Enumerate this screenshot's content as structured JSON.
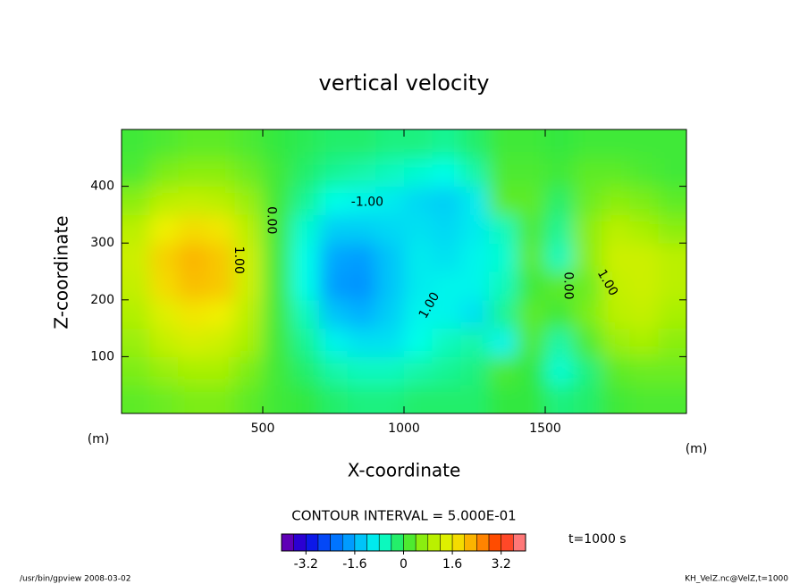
{
  "chart_data": {
    "type": "contour",
    "title": "vertical velocity",
    "x_label": "X-coordinate",
    "y_label": "Z-coordinate",
    "x_unit": "(m)",
    "y_unit": "(m)",
    "xlim": [
      0,
      2000
    ],
    "ylim": [
      0,
      500
    ],
    "xticks": [
      500,
      1000,
      1500
    ],
    "yticks": [
      100,
      200,
      300,
      400
    ],
    "x": [
      50,
      150,
      250,
      350,
      450,
      550,
      650,
      750,
      850,
      950,
      1050,
      1150,
      1250,
      1350,
      1450,
      1550,
      1650,
      1750,
      1850,
      1950
    ],
    "y": [
      25,
      75,
      125,
      175,
      225,
      275,
      325,
      375,
      425,
      475
    ],
    "z": [
      [
        0.3,
        0.4,
        0.5,
        0.5,
        0.3,
        0.1,
        0,
        -0.2,
        -0.3,
        -0.3,
        -0.2,
        -0.2,
        -0.2,
        0,
        0,
        -0.3,
        -0.2,
        0.1,
        0.2,
        0.2
      ],
      [
        0.5,
        0.7,
        0.8,
        0.8,
        0.5,
        0.1,
        -0.2,
        -0.5,
        -0.6,
        -0.6,
        -0.5,
        -0.4,
        -0.3,
        0.2,
        0,
        -0.7,
        -0.3,
        0.3,
        0.4,
        0.4
      ],
      [
        0.7,
        1.1,
        1.3,
        1.2,
        0.8,
        0.1,
        -0.4,
        -0.9,
        -1.1,
        -1.1,
        -0.8,
        -0.6,
        -0.5,
        -0.9,
        0.2,
        -0.5,
        0.2,
        0.7,
        0.8,
        0.6
      ],
      [
        0.9,
        1.4,
        1.7,
        1.6,
        1.0,
        0.1,
        -0.6,
        -1.4,
        -1.6,
        -1.3,
        -0.9,
        -0.9,
        -1.1,
        -0.4,
        0.3,
        0.1,
        0.5,
        1.0,
        1.1,
        0.8
      ],
      [
        1.1,
        1.8,
        2.1,
        2.0,
        1.2,
        0.1,
        -0.8,
        -1.8,
        -1.9,
        -1.4,
        -1.0,
        -0.9,
        -0.9,
        -0.6,
        0.1,
        0.3,
        0.4,
        1.1,
        1.2,
        1.0
      ],
      [
        1.2,
        1.9,
        2.2,
        2.0,
        1.2,
        0.1,
        -0.8,
        -1.7,
        -1.8,
        -1.4,
        -1.0,
        -1.1,
        -0.9,
        -0.7,
        0.3,
        -0.6,
        0.6,
        1.2,
        1.2,
        1.0
      ],
      [
        1.0,
        1.6,
        1.8,
        1.7,
        1.0,
        0.1,
        -0.7,
        -1.3,
        -1.3,
        -1.2,
        -1.1,
        -1.2,
        -1.0,
        -0.6,
        0.2,
        -0.4,
        0.6,
        1.0,
        0.8,
        0.6
      ],
      [
        0.6,
        1.0,
        1.1,
        1.0,
        0.7,
        0.1,
        -0.4,
        -0.8,
        -0.9,
        -1.0,
        -1.2,
        -1.3,
        -1.0,
        0.3,
        0.3,
        -0.2,
        0.4,
        0.6,
        0.5,
        0.3
      ],
      [
        0.2,
        0.5,
        0.6,
        0.6,
        0.4,
        0.1,
        -0.2,
        -0.4,
        -0.5,
        -0.6,
        -0.7,
        -0.8,
        -0.5,
        0.2,
        0.2,
        0.1,
        0.3,
        0.3,
        0.2,
        0.1
      ],
      [
        0.1,
        0.2,
        0.3,
        0.3,
        0.2,
        0,
        -0.1,
        -0.2,
        -0.2,
        -0.3,
        -0.3,
        -0.4,
        -0.2,
        0.1,
        0.1,
        0,
        0.1,
        0.1,
        0.1,
        0.1
      ]
    ],
    "colors": [
      "#7a00a8",
      "#1000e0",
      "#0060ff",
      "#00b0ff",
      "#00ffe8",
      "#30e840",
      "#a8f000",
      "#f0f000",
      "#ffa000",
      "#ff3000",
      "#ff90a0"
    ],
    "annotations": [
      {
        "text": "1.00",
        "x": 415,
        "y": 270
      },
      {
        "text": "0.00",
        "x": 530,
        "y": 340
      },
      {
        "text": "-1.00",
        "x": 870,
        "y": 372
      },
      {
        "text": "1.00",
        "x": 1090,
        "y": 190
      },
      {
        "text": "0.00",
        "x": 1580,
        "y": 225
      },
      {
        "text": "1.00",
        "x": 1720,
        "y": 230
      }
    ],
    "contour_interval": "CONTOUR INTERVAL = 5.000E-01",
    "time_label": "t=1000 s",
    "colorbar": {
      "levels": [
        -4,
        -3.6,
        -3.2,
        -2.8,
        -2.4,
        -2,
        -1.6,
        -1.2,
        -0.8,
        -0.4,
        0,
        0.4,
        0.8,
        1.2,
        1.6,
        2,
        2.4,
        2.8,
        3.2,
        3.6,
        4
      ],
      "ticks": [
        -3.2,
        -1.6,
        0,
        1.6,
        3.2
      ]
    },
    "footer_left": "/usr/bin/gpview  2008-03-02",
    "footer_right": "KH_VelZ.nc@VelZ,t=1000"
  }
}
